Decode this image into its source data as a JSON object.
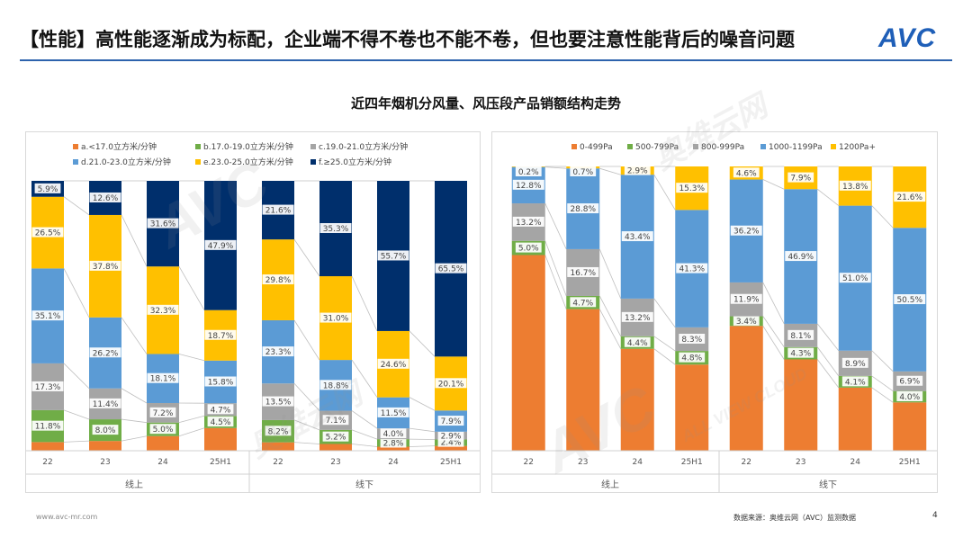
{
  "header": {
    "title": "【性能】高性能逐渐成为标配，企业端不得不卷也不能不卷，但也要注意性能背后的噪音问题",
    "logo": "AVC"
  },
  "chart_title": "近四年烟机分风量、风压段产品销额结构走势",
  "footer": {
    "website": "www.avc-mr.com",
    "source": "数据来源：奥维云网（AVC）监测数据",
    "page": "4"
  },
  "watermark": {
    "brand": "AVC",
    "cn": "奥维云网",
    "en": "ALL VIEW CLOUD"
  },
  "chart_data": [
    {
      "type": "bar",
      "stacked": true,
      "normalized": true,
      "legend_position": "top",
      "categories": [
        "22",
        "23",
        "24",
        "25H1",
        "22",
        "23",
        "24",
        "25H1"
      ],
      "groups": [
        {
          "label": "线上",
          "from": 0,
          "to": 3
        },
        {
          "label": "线下",
          "from": 4,
          "to": 7
        }
      ],
      "series": [
        {
          "name": "a.<17.0立方米/分钟",
          "color": "#ed7d31",
          "values": [
            3.2,
            3.6,
            5.4,
            8.4,
            3.1,
            2.5,
            1.5,
            1.8
          ],
          "labels": [
            "",
            "",
            "",
            "",
            "",
            "",
            "",
            ""
          ]
        },
        {
          "name": "b.17.0-19.0立方米/分钟",
          "color": "#70ad47",
          "values": [
            11.8,
            8.0,
            5.0,
            4.5,
            8.2,
            5.2,
            2.8,
            2.4
          ],
          "labels": [
            "11.8%",
            "8.0%",
            "5.0%",
            "4.5%",
            "8.2%",
            "5.2%",
            "2.8%",
            "2.4%"
          ]
        },
        {
          "name": "c.19.0-21.0立方米/分钟",
          "color": "#a5a5a5",
          "values": [
            17.3,
            11.4,
            7.2,
            4.7,
            13.5,
            7.1,
            4.0,
            2.9
          ],
          "labels": [
            "17.3%",
            "11.4%",
            "7.2%",
            "4.7%",
            "13.5%",
            "7.1%",
            "4.0%",
            "2.9%"
          ]
        },
        {
          "name": "d.21.0-23.0立方米/分钟",
          "color": "#5b9bd5",
          "values": [
            35.1,
            26.2,
            18.1,
            15.8,
            23.3,
            18.8,
            11.5,
            7.9
          ],
          "labels": [
            "35.1%",
            "26.2%",
            "18.1%",
            "15.8%",
            "23.3%",
            "18.8%",
            "11.5%",
            "7.9%"
          ]
        },
        {
          "name": "e.23.0-25.0立方米/分钟",
          "color": "#ffc000",
          "values": [
            26.5,
            37.8,
            32.3,
            18.7,
            29.8,
            31.0,
            24.6,
            20.1
          ],
          "labels": [
            "26.5%",
            "37.8%",
            "32.3%",
            "18.7%",
            "29.8%",
            "31.0%",
            "24.6%",
            "20.1%"
          ]
        },
        {
          "name": "f.≥25.0立方米/分钟",
          "color": "#002f6c",
          "values": [
            5.9,
            12.6,
            31.6,
            47.9,
            21.6,
            35.3,
            55.7,
            65.5
          ],
          "labels": [
            "5.9%",
            "12.6%",
            "31.6%",
            "47.9%",
            "21.6%",
            "35.3%",
            "55.7%",
            "65.5%"
          ]
        }
      ]
    },
    {
      "type": "bar",
      "stacked": true,
      "normalized": true,
      "legend_position": "top",
      "categories": [
        "22",
        "23",
        "24",
        "25H1",
        "22",
        "23",
        "24",
        "25H1"
      ],
      "groups": [
        {
          "label": "线上",
          "from": 0,
          "to": 3
        },
        {
          "label": "线下",
          "from": 4,
          "to": 7
        }
      ],
      "series": [
        {
          "name": "0-499Pa",
          "color": "#ed7d31",
          "values": [
            68.9,
            50.5,
            35.7,
            30.3,
            43.9,
            31.8,
            22.2,
            17.0
          ],
          "labels": [
            "",
            "",
            "",
            "",
            "",
            "",
            "",
            ""
          ]
        },
        {
          "name": "500-799Pa",
          "color": "#70ad47",
          "values": [
            5.0,
            4.7,
            4.4,
            4.8,
            3.4,
            4.3,
            4.1,
            4.0
          ],
          "labels": [
            "5.0%",
            "4.7%",
            "4.4%",
            "4.8%",
            "3.4%",
            "4.3%",
            "4.1%",
            "4.0%"
          ]
        },
        {
          "name": "800-999Pa",
          "color": "#a5a5a5",
          "values": [
            13.2,
            16.7,
            13.2,
            8.3,
            11.9,
            8.1,
            8.9,
            6.9
          ],
          "labels": [
            "13.2%",
            "16.7%",
            "13.2%",
            "8.3%",
            "11.9%",
            "8.1%",
            "8.9%",
            "6.9%"
          ]
        },
        {
          "name": "1000-1199Pa",
          "color": "#5b9bd5",
          "values": [
            12.8,
            28.8,
            43.4,
            41.3,
            36.2,
            46.9,
            51.0,
            50.5
          ],
          "labels": [
            "12.8%",
            "28.8%",
            "43.4%",
            "41.3%",
            "36.2%",
            "46.9%",
            "51.0%",
            "50.5%"
          ]
        },
        {
          "name": "1200Pa+",
          "color": "#ffc000",
          "values": [
            0.2,
            0.7,
            2.9,
            15.3,
            4.6,
            7.9,
            13.8,
            21.6
          ],
          "labels": [
            "0.2%",
            "0.7%",
            "2.9%",
            "15.3%",
            "4.6%",
            "7.9%",
            "13.8%",
            "21.6%"
          ]
        }
      ]
    }
  ]
}
